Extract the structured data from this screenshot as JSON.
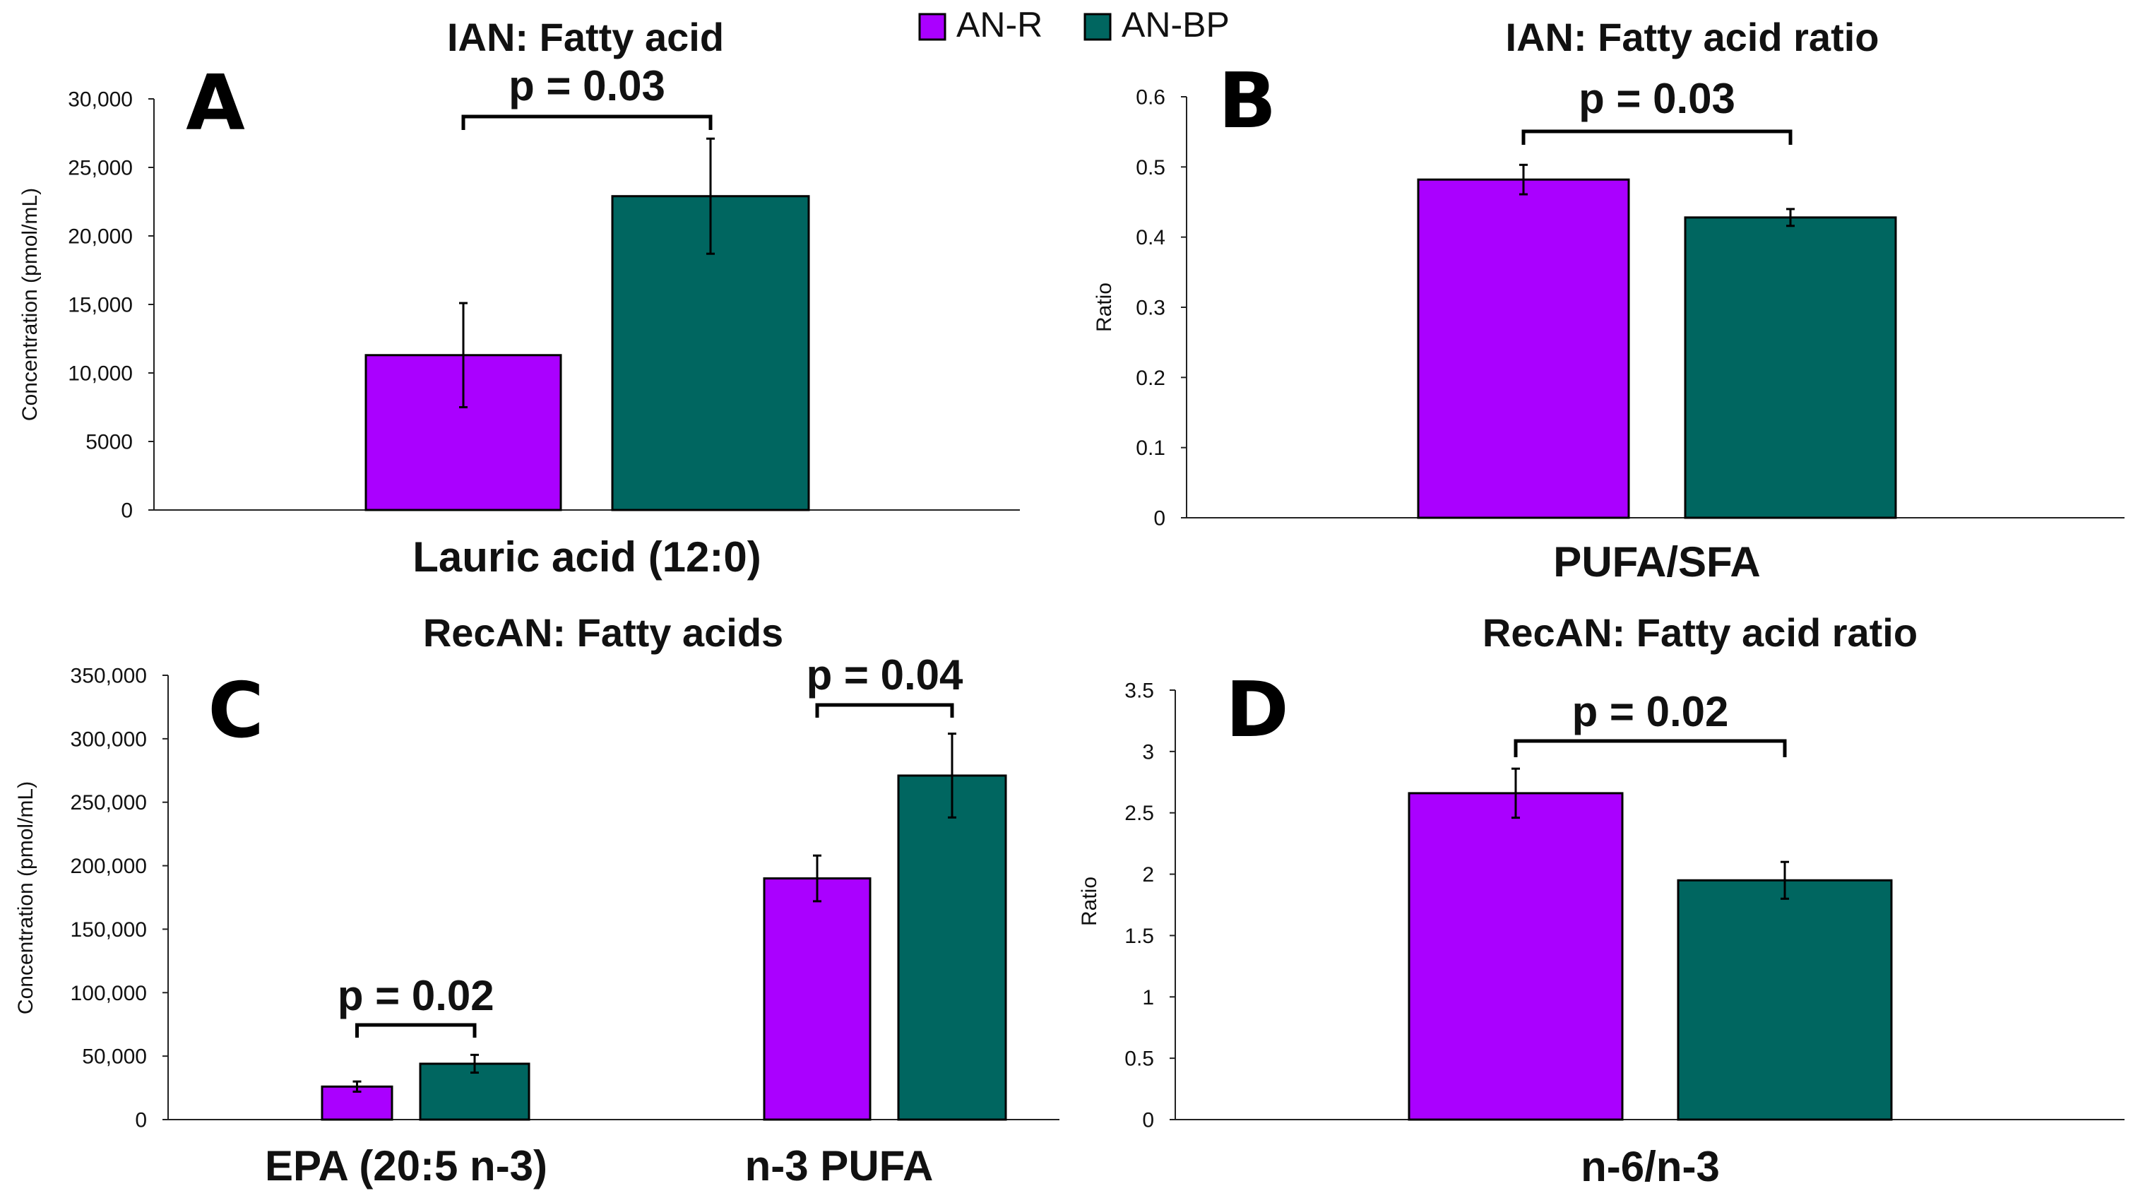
{
  "colors": {
    "AN-R": "#aa00ff",
    "AN-BP": "#006660"
  },
  "legend": {
    "items": [
      {
        "name": "AN-R",
        "color": "#aa00ff"
      },
      {
        "name": "AN-BP",
        "color": "#006660"
      }
    ],
    "placement": "top-center"
  },
  "chart_data": [
    {
      "panel": "A",
      "type": "bar",
      "title": "IAN: Fatty acid",
      "xlabel": "",
      "ylabel": "Concentration (pmol/mL)",
      "ylim": [
        0,
        30000
      ],
      "yticks": [
        0,
        5000,
        10000,
        15000,
        20000,
        25000,
        30000
      ],
      "ytick_labels": [
        "0",
        "5000",
        "10,000",
        "15,000",
        "20,000",
        "25,000",
        "30,000"
      ],
      "categories": [
        "Lauric acid (12:0)"
      ],
      "series": [
        {
          "name": "AN-R",
          "values": [
            11300
          ],
          "errors": [
            3800
          ]
        },
        {
          "name": "AN-BP",
          "values": [
            22900
          ],
          "errors": [
            4200
          ]
        }
      ],
      "annotations": [
        {
          "category_index": 0,
          "text": "p = 0.03"
        }
      ]
    },
    {
      "panel": "B",
      "type": "bar",
      "title": "IAN: Fatty acid ratio",
      "xlabel": "",
      "ylabel": "Ratio",
      "ylim": [
        0,
        0.6
      ],
      "yticks": [
        0,
        0.1,
        0.2,
        0.3,
        0.4,
        0.5,
        0.6
      ],
      "ytick_labels": [
        "0",
        "0.1",
        "0.2",
        "0.3",
        "0.4",
        "0.5",
        "0.6"
      ],
      "categories": [
        "PUFA/SFA"
      ],
      "series": [
        {
          "name": "AN-R",
          "values": [
            0.482
          ],
          "errors": [
            0.021
          ]
        },
        {
          "name": "AN-BP",
          "values": [
            0.428
          ],
          "errors": [
            0.012
          ]
        }
      ],
      "annotations": [
        {
          "category_index": 0,
          "text": "p = 0.03"
        }
      ]
    },
    {
      "panel": "C",
      "type": "bar",
      "title": "RecAN: Fatty acids",
      "xlabel": "",
      "ylabel": "Concentration (pmol/mL)",
      "ylim": [
        0,
        350000
      ],
      "yticks": [
        0,
        50000,
        100000,
        150000,
        200000,
        250000,
        300000,
        350000
      ],
      "ytick_labels": [
        "0",
        "50,000",
        "100,000",
        "150,000",
        "200,000",
        "250,000",
        "300,000",
        "350,000"
      ],
      "categories": [
        "EPA (20:5 n-3)",
        "n-3 PUFA"
      ],
      "series": [
        {
          "name": "AN-R",
          "values": [
            26000,
            190000
          ],
          "errors": [
            4000,
            18000
          ]
        },
        {
          "name": "AN-BP",
          "values": [
            44000,
            271000
          ],
          "errors": [
            7000,
            33000
          ]
        }
      ],
      "annotations": [
        {
          "category_index": 0,
          "text": "p = 0.02"
        },
        {
          "category_index": 1,
          "text": "p = 0.04"
        }
      ]
    },
    {
      "panel": "D",
      "type": "bar",
      "title": "RecAN: Fatty acid ratio",
      "xlabel": "",
      "ylabel": "Ratio",
      "ylim": [
        0,
        3.5
      ],
      "yticks": [
        0,
        0.5,
        1,
        1.5,
        2,
        2.5,
        3,
        3.5
      ],
      "ytick_labels": [
        "0",
        "0.5",
        "1",
        "1.5",
        "2",
        "2.5",
        "3",
        "3.5"
      ],
      "categories": [
        "n-6/n-3"
      ],
      "series": [
        {
          "name": "AN-R",
          "values": [
            2.66
          ],
          "errors": [
            0.2
          ]
        },
        {
          "name": "AN-BP",
          "values": [
            1.95
          ],
          "errors": [
            0.15
          ]
        }
      ],
      "annotations": [
        {
          "category_index": 0,
          "text": "p = 0.02"
        }
      ]
    }
  ]
}
